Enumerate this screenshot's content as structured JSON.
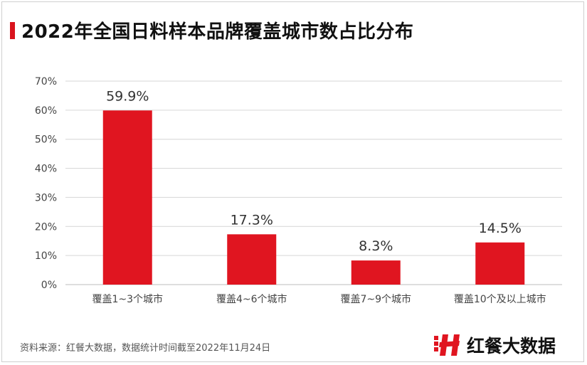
{
  "header": {
    "title": "2022年全国日料样本品牌覆盖城市数占比分布"
  },
  "footer": {
    "source": "资料来源：红餐大数据，数据统计时间截至2022年11月24日",
    "brand": "红餐大数据"
  },
  "colors": {
    "bar": "#e01520",
    "accent": "#d9141e",
    "grid": "#d6d6d6",
    "axis_text": "#444444",
    "label_text": "#333333"
  },
  "chart_data": {
    "type": "bar",
    "title": "2022年全国日料样本品牌覆盖城市数占比分布",
    "xlabel": "",
    "ylabel": "",
    "categories": [
      "覆盖1~3个城市",
      "覆盖4~6个城市",
      "覆盖7~9个城市",
      "覆盖10个及以上城市"
    ],
    "values": [
      59.9,
      17.3,
      8.3,
      14.5
    ],
    "value_labels": [
      "59.9%",
      "17.3%",
      "8.3%",
      "14.5%"
    ],
    "ylim": [
      0,
      70
    ],
    "yticks": [
      0,
      10,
      20,
      30,
      40,
      50,
      60,
      70
    ],
    "ytick_labels": [
      "0%",
      "10%",
      "20%",
      "30%",
      "40%",
      "50%",
      "60%",
      "70%"
    ],
    "grid": true,
    "legend": "none"
  }
}
